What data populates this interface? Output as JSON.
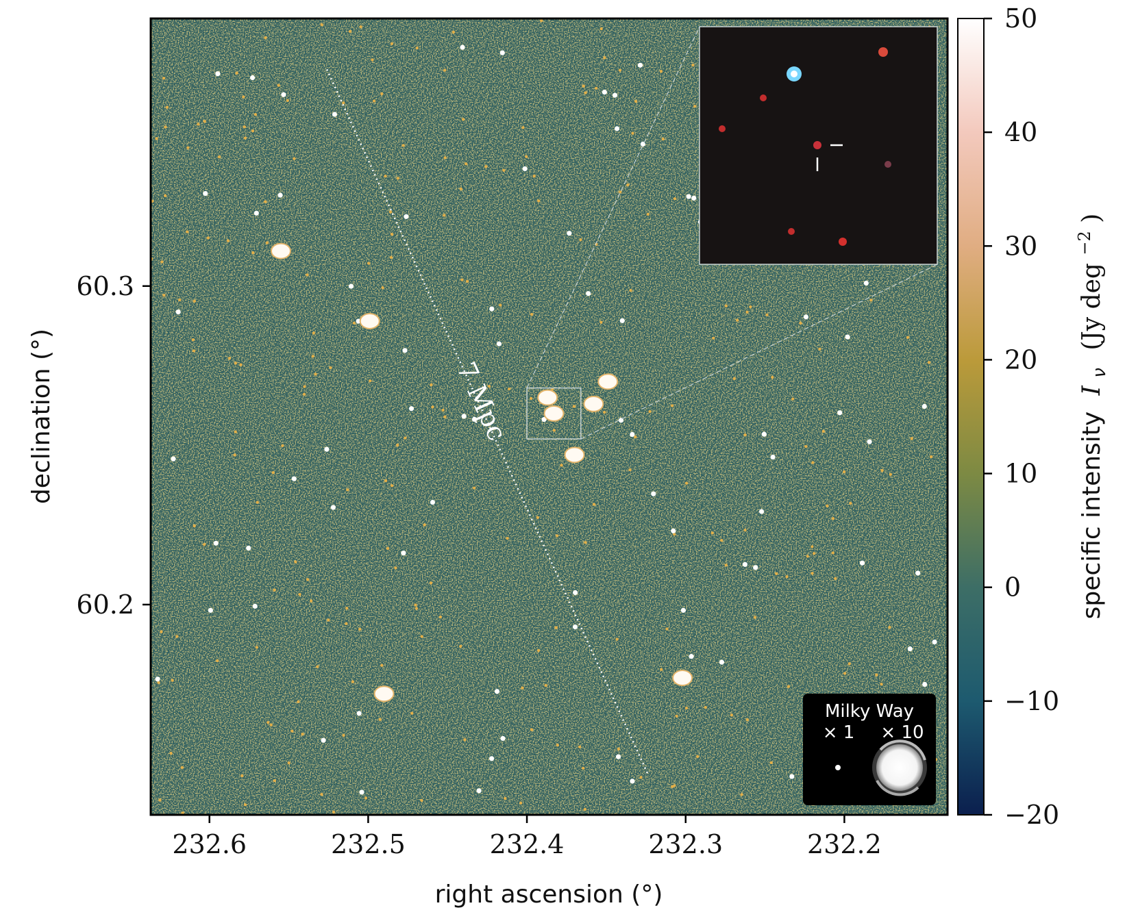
{
  "chart_data": {
    "type": "heatmap",
    "title": "",
    "xlabel": "right ascension (°)",
    "ylabel": "declination (°)",
    "x_ticks": [
      232.6,
      232.5,
      232.4,
      232.3,
      232.2
    ],
    "x_tick_labels": [
      "232.6",
      "232.5",
      "232.4",
      "232.3",
      "232.2"
    ],
    "y_ticks": [
      60.3,
      60.2
    ],
    "y_tick_labels": [
      "60.3",
      "60.2"
    ],
    "xlim": [
      232.637,
      232.135
    ],
    "ylim": [
      60.134,
      60.384
    ],
    "x_reversed": true,
    "colorbar": {
      "label": "specific intensity I_ν (Jy deg⁻²)",
      "label_plain": "specific intensity",
      "label_symbol": "I",
      "label_subscript": "ν",
      "label_units": "(Jy deg",
      "label_units_exp": "−2",
      "label_units_close": ")",
      "ticks": [
        50,
        40,
        30,
        20,
        10,
        0,
        -10,
        -20
      ],
      "tick_labels": [
        "50",
        "40",
        "30",
        "20",
        "10",
        "0",
        "−10",
        "−20"
      ],
      "range": [
        -20,
        50
      ],
      "colors": [
        "#0b1f4e",
        "#1d5a6f",
        "#3d6e66",
        "#7d8a43",
        "#bb9a3a",
        "#e0ad82",
        "#f3c9bd",
        "#ffffff"
      ]
    },
    "annotations": [
      {
        "text": "7 Mpc",
        "kind": "scale-bar"
      }
    ],
    "scale_bar_endpoints": [
      {
        "ra": 232.526,
        "dec": 60.368
      },
      {
        "ra": 232.324,
        "dec": 60.147
      }
    ],
    "zoom_box": {
      "ra_min": 232.366,
      "ra_max": 232.4,
      "dec_min": 60.252,
      "dec_max": 60.268
    },
    "legend": {
      "title": "Milky Way",
      "entries": [
        "× 1",
        "× 10"
      ],
      "placement": "bottom-right"
    },
    "bright_sources": [
      {
        "ra": 232.349,
        "dec": 60.27
      },
      {
        "ra": 232.358,
        "dec": 60.263
      },
      {
        "ra": 232.37,
        "dec": 60.247
      },
      {
        "ra": 232.387,
        "dec": 60.265
      },
      {
        "ra": 232.383,
        "dec": 60.26
      },
      {
        "ra": 232.302,
        "dec": 60.177
      },
      {
        "ra": 232.49,
        "dec": 60.172
      },
      {
        "ra": 232.555,
        "dec": 60.311
      },
      {
        "ra": 232.499,
        "dec": 60.289
      }
    ]
  },
  "colors": {
    "background": "#2f5f61",
    "frame": "#000000",
    "legend_box": "#000000",
    "inset_background": "#171313"
  }
}
